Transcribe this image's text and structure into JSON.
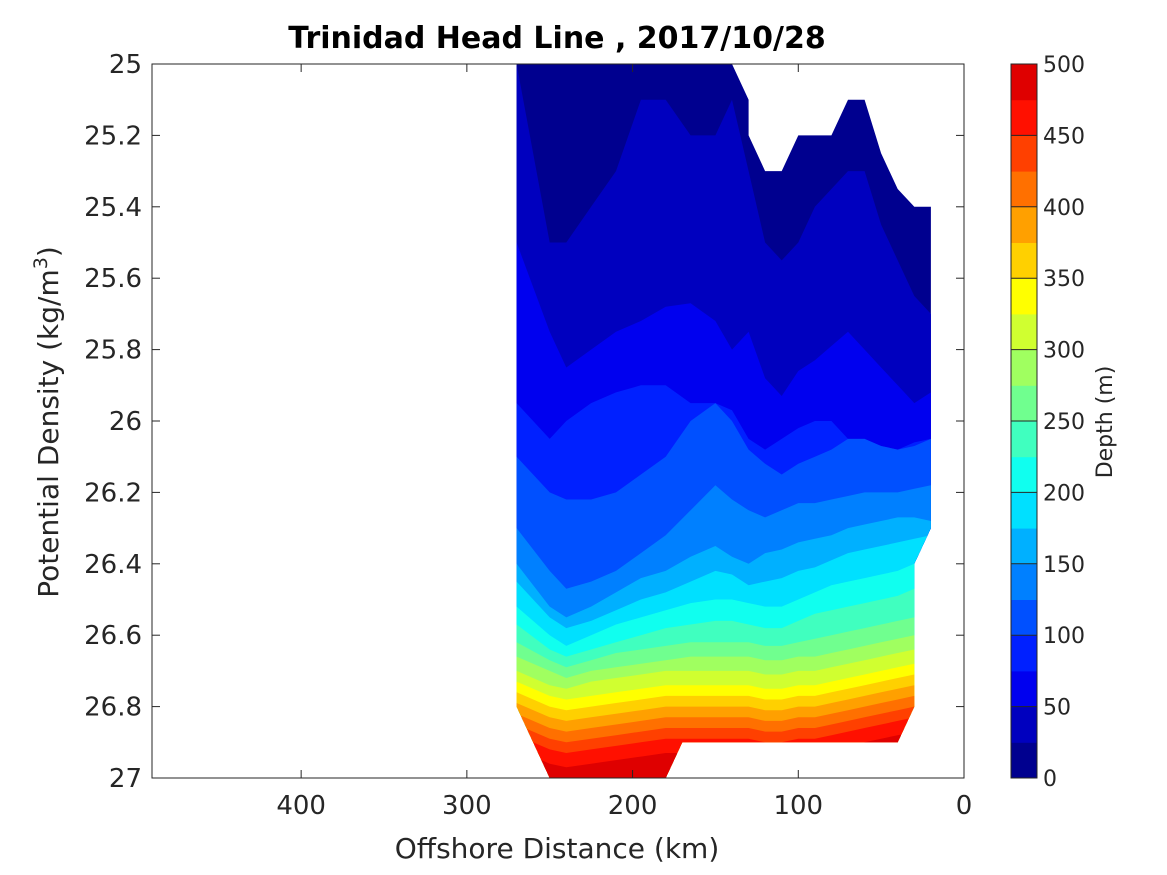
{
  "chart_data": {
    "type": "filled-contour",
    "title": "Trinidad Head Line , 2017/10/28",
    "xlabel": "Offshore Distance (km)",
    "ylabel": "Potential Density (kg/m^3)",
    "ylabel_main": "Potential Density (kg/m",
    "ylabel_sup": "3",
    "ylabel_close": ")",
    "x_range": [
      490,
      0
    ],
    "x_reversed": true,
    "y_range": [
      25,
      27
    ],
    "y_reversed": true,
    "x_ticks": [
      400,
      300,
      200,
      100,
      0
    ],
    "y_ticks": [
      25,
      25.2,
      25.4,
      25.6,
      25.8,
      26,
      26.2,
      26.4,
      26.6,
      26.8,
      27
    ],
    "y_tick_labels": [
      "25",
      "25.2",
      "25.4",
      "25.6",
      "25.8",
      "26",
      "26.2",
      "26.4",
      "26.6",
      "26.8",
      "27"
    ],
    "colorbar": {
      "label": "Depth (m)",
      "range": [
        0,
        500
      ],
      "ticks": [
        0,
        50,
        100,
        150,
        200,
        250,
        300,
        350,
        400,
        450,
        500
      ],
      "level_step": 25,
      "colors": [
        "#00008f",
        "#0000bf",
        "#0000ef",
        "#0020ff",
        "#0050ff",
        "#0080ff",
        "#00b0ff",
        "#00e0ff",
        "#10ffef",
        "#40ffbf",
        "#70ff8f",
        "#a0ff60",
        "#d0ff30",
        "#ffff00",
        "#ffd000",
        "#ffa000",
        "#ff7000",
        "#ff4000",
        "#ff1000",
        "#df0000",
        "#af0000"
      ]
    },
    "x_stations": [
      270,
      250,
      240,
      225,
      210,
      195,
      180,
      165,
      150,
      140,
      130,
      120,
      110,
      100,
      90,
      80,
      70,
      60,
      50,
      40,
      30,
      20
    ],
    "depth_isolines": [
      {
        "depth": 25,
        "sigma": [
          25.0,
          25.5,
          25.5,
          25.4,
          25.3,
          25.1,
          25.1,
          25.2,
          25.2,
          25.1,
          25.3,
          25.5,
          25.55,
          25.5,
          25.4,
          25.35,
          25.3,
          25.3,
          25.45,
          25.55,
          25.65,
          25.7
        ]
      },
      {
        "depth": 50,
        "sigma": [
          25.5,
          25.75,
          25.85,
          25.8,
          25.75,
          25.72,
          25.68,
          25.67,
          25.72,
          25.8,
          25.75,
          25.88,
          25.93,
          25.86,
          25.83,
          25.79,
          25.75,
          25.8,
          25.85,
          25.9,
          25.95,
          25.92
        ]
      },
      {
        "depth": 75,
        "sigma": [
          25.95,
          26.05,
          26.0,
          25.95,
          25.92,
          25.9,
          25.9,
          25.95,
          25.95,
          25.97,
          26.05,
          26.08,
          26.05,
          26.02,
          26.0,
          26.0,
          26.05,
          26.05,
          26.07,
          26.08,
          26.06,
          26.05
        ]
      },
      {
        "depth": 100,
        "sigma": [
          26.1,
          26.2,
          26.22,
          26.22,
          26.2,
          26.15,
          26.1,
          26.0,
          25.95,
          26.0,
          26.08,
          26.12,
          26.15,
          26.12,
          26.1,
          26.08,
          26.05,
          26.05,
          26.07,
          26.08,
          26.07,
          26.05
        ]
      },
      {
        "depth": 125,
        "sigma": [
          26.3,
          26.42,
          26.47,
          26.45,
          26.42,
          26.37,
          26.32,
          26.25,
          26.18,
          26.22,
          26.25,
          26.27,
          26.25,
          26.23,
          26.23,
          26.22,
          26.21,
          26.2,
          26.2,
          26.2,
          26.19,
          26.18
        ]
      },
      {
        "depth": 150,
        "sigma": [
          26.4,
          26.52,
          26.55,
          26.52,
          26.48,
          26.44,
          26.42,
          26.38,
          26.35,
          26.38,
          26.4,
          26.37,
          26.36,
          26.34,
          26.33,
          26.32,
          26.3,
          26.29,
          26.28,
          26.27,
          26.27,
          26.28
        ]
      },
      {
        "depth": 175,
        "sigma": [
          26.45,
          26.55,
          26.58,
          26.56,
          26.53,
          26.5,
          26.48,
          26.45,
          26.42,
          26.43,
          26.46,
          26.45,
          26.44,
          26.42,
          26.41,
          26.39,
          26.37,
          26.36,
          26.35,
          26.34,
          26.33,
          26.32
        ]
      },
      {
        "depth": 200,
        "sigma": [
          26.52,
          26.6,
          26.63,
          26.6,
          26.57,
          26.55,
          26.53,
          26.51,
          26.5,
          26.5,
          26.51,
          26.52,
          26.52,
          26.5,
          26.48,
          26.46,
          26.45,
          26.44,
          26.43,
          26.42,
          26.4,
          26.38
        ]
      },
      {
        "depth": 225,
        "sigma": [
          26.57,
          26.64,
          26.66,
          26.64,
          26.62,
          26.6,
          26.58,
          26.57,
          26.56,
          26.56,
          26.57,
          26.58,
          26.58,
          26.56,
          26.54,
          26.53,
          26.52,
          26.51,
          26.5,
          26.49,
          26.47,
          26.45
        ]
      },
      {
        "depth": 250,
        "sigma": [
          26.62,
          26.67,
          26.69,
          26.67,
          26.65,
          26.64,
          26.63,
          26.62,
          26.62,
          26.62,
          26.62,
          26.63,
          26.63,
          26.62,
          26.61,
          26.6,
          26.59,
          26.58,
          26.57,
          26.56,
          26.55,
          26.53
        ]
      },
      {
        "depth": 275,
        "sigma": [
          26.66,
          26.7,
          26.72,
          26.7,
          26.69,
          26.68,
          26.67,
          26.66,
          26.66,
          26.66,
          26.66,
          26.67,
          26.67,
          26.66,
          26.66,
          26.65,
          26.64,
          26.63,
          26.62,
          26.61,
          26.6,
          26.59
        ]
      },
      {
        "depth": 300,
        "sigma": [
          26.7,
          26.74,
          26.75,
          26.73,
          26.72,
          26.71,
          26.7,
          26.7,
          26.7,
          26.7,
          26.7,
          26.71,
          26.71,
          26.7,
          26.7,
          26.69,
          26.68,
          26.67,
          26.66,
          26.65,
          26.64,
          26.63
        ]
      },
      {
        "depth": 325,
        "sigma": [
          26.73,
          26.77,
          26.78,
          26.77,
          26.76,
          26.75,
          26.74,
          26.74,
          26.74,
          26.74,
          26.74,
          26.75,
          26.75,
          26.74,
          26.74,
          26.73,
          26.72,
          26.71,
          26.7,
          26.69,
          26.68,
          26.67
        ]
      },
      {
        "depth": 350,
        "sigma": [
          26.76,
          26.8,
          26.81,
          26.8,
          26.79,
          26.78,
          26.77,
          26.77,
          26.77,
          26.77,
          26.77,
          26.78,
          26.78,
          26.77,
          26.77,
          26.76,
          26.75,
          26.74,
          26.73,
          26.72,
          26.71,
          26.7
        ]
      },
      {
        "depth": 375,
        "sigma": [
          26.79,
          26.83,
          26.84,
          26.83,
          26.82,
          26.81,
          26.8,
          26.8,
          26.8,
          26.8,
          26.8,
          26.81,
          26.81,
          26.8,
          26.8,
          26.79,
          26.78,
          26.77,
          26.76,
          26.75,
          26.74,
          26.73
        ]
      },
      {
        "depth": 400,
        "sigma": [
          26.82,
          26.86,
          26.87,
          26.86,
          26.85,
          26.84,
          26.83,
          26.83,
          26.83,
          26.83,
          26.83,
          26.84,
          26.84,
          26.83,
          26.83,
          26.82,
          26.81,
          26.8,
          26.79,
          26.78,
          26.77,
          26.76
        ]
      },
      {
        "depth": 425,
        "sigma": [
          26.85,
          26.89,
          26.9,
          26.89,
          26.88,
          26.87,
          26.86,
          26.86,
          26.86,
          26.86,
          26.86,
          26.87,
          26.87,
          26.86,
          26.86,
          26.85,
          26.84,
          26.83,
          26.82,
          26.81,
          26.8,
          26.79
        ]
      },
      {
        "depth": 450,
        "sigma": [
          26.88,
          26.92,
          26.93,
          26.92,
          26.91,
          26.9,
          26.89,
          26.89,
          26.89,
          26.89,
          26.89,
          26.9,
          26.9,
          26.89,
          26.89,
          26.88,
          26.87,
          26.86,
          26.85,
          26.84,
          26.83,
          26.82
        ]
      },
      {
        "depth": 475,
        "sigma": [
          26.92,
          26.96,
          26.97,
          26.96,
          26.95,
          26.94,
          26.93,
          26.93,
          26.93,
          26.93,
          26.93,
          26.94,
          26.94,
          26.93,
          26.93,
          26.92,
          26.91,
          26.9,
          26.89,
          26.88,
          26.87,
          26.86
        ]
      }
    ],
    "data_boundary": [
      [
        270,
        25.0
      ],
      [
        140,
        25.0
      ],
      [
        130,
        25.1
      ],
      [
        130,
        25.2
      ],
      [
        120,
        25.3
      ],
      [
        110,
        25.3
      ],
      [
        100,
        25.2
      ],
      [
        80,
        25.2
      ],
      [
        70,
        25.1
      ],
      [
        60,
        25.1
      ],
      [
        50,
        25.25
      ],
      [
        40,
        25.35
      ],
      [
        30,
        25.4
      ],
      [
        20,
        25.4
      ],
      [
        20,
        26.3
      ],
      [
        30,
        26.4
      ],
      [
        30,
        26.8
      ],
      [
        40,
        26.9
      ],
      [
        170,
        26.9
      ],
      [
        180,
        27.0
      ],
      [
        250,
        27.0
      ],
      [
        270,
        26.8
      ]
    ]
  }
}
